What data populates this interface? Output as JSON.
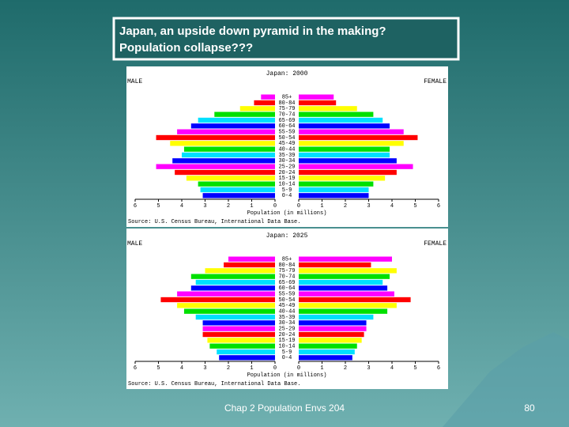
{
  "slide": {
    "title_lines": [
      "Japan, an upside down pyramid in the making?",
      "Population collapse???"
    ],
    "footer": "Chap 2 Population Envs 204",
    "page_number": 80
  },
  "chart_data": [
    {
      "type": "pyramid",
      "title": "Japan: 2000",
      "x_label": "Population (in millions)",
      "source": "Source: U.S. Census Bureau, International Data Base.",
      "categories": [
        "0-4",
        "5-9",
        "10-14",
        "15-19",
        "20-24",
        "25-29",
        "30-34",
        "35-39",
        "40-44",
        "45-49",
        "50-54",
        "55-59",
        "60-64",
        "65-69",
        "70-74",
        "75-79",
        "80-84",
        "85+"
      ],
      "colors": [
        "#0000ff",
        "#00e0ff",
        "#00e000",
        "#ffff00",
        "#ff0000",
        "#ff00ff",
        "#0000ff",
        "#00e0ff",
        "#00e000",
        "#ffff00",
        "#ff0000",
        "#ff00ff",
        "#0000ff",
        "#00e0ff",
        "#00e000",
        "#ffff00",
        "#ff0000",
        "#ff00ff"
      ],
      "series": [
        {
          "name": "MALE",
          "values": [
            3.1,
            3.2,
            3.3,
            3.8,
            4.3,
            5.1,
            4.4,
            4.0,
            3.9,
            4.5,
            5.1,
            4.2,
            3.6,
            3.3,
            2.6,
            1.5,
            0.9,
            0.6
          ]
        },
        {
          "name": "FEMALE",
          "values": [
            3.0,
            3.0,
            3.2,
            3.7,
            4.2,
            4.9,
            4.2,
            3.9,
            3.9,
            4.5,
            5.1,
            4.5,
            3.9,
            3.6,
            3.2,
            2.5,
            1.6,
            1.5
          ]
        }
      ],
      "xlim": [
        0,
        6
      ],
      "xticks": [
        0,
        1,
        2,
        3,
        4,
        5,
        6
      ]
    },
    {
      "type": "pyramid",
      "title": "Japan: 2025",
      "x_label": "Population (in millions)",
      "source": "Source: U.S. Census Bureau, International Data Base.",
      "categories": [
        "0-4",
        "5-9",
        "10-14",
        "15-19",
        "20-24",
        "25-29",
        "30-34",
        "35-39",
        "40-44",
        "45-49",
        "50-54",
        "55-59",
        "60-64",
        "65-69",
        "70-74",
        "75-79",
        "80-84",
        "85+"
      ],
      "colors": [
        "#0000ff",
        "#00e0ff",
        "#00e000",
        "#ffff00",
        "#ff0000",
        "#ff00ff",
        "#0000ff",
        "#00e0ff",
        "#00e000",
        "#ffff00",
        "#ff0000",
        "#ff00ff",
        "#0000ff",
        "#00e0ff",
        "#00e000",
        "#ffff00",
        "#ff0000",
        "#ff00ff"
      ],
      "series": [
        {
          "name": "MALE",
          "values": [
            2.4,
            2.5,
            2.8,
            2.9,
            3.1,
            3.1,
            3.1,
            3.4,
            3.9,
            4.2,
            4.9,
            4.2,
            3.6,
            3.4,
            3.6,
            3.0,
            2.2,
            2.0
          ]
        },
        {
          "name": "FEMALE",
          "values": [
            2.3,
            2.4,
            2.5,
            2.7,
            2.8,
            2.9,
            2.9,
            3.2,
            3.8,
            4.2,
            4.8,
            4.1,
            3.8,
            3.6,
            3.9,
            4.2,
            3.1,
            4.0
          ]
        }
      ],
      "xlim": [
        0,
        6
      ],
      "xticks": [
        0,
        1,
        2,
        3,
        4,
        5,
        6
      ]
    }
  ]
}
